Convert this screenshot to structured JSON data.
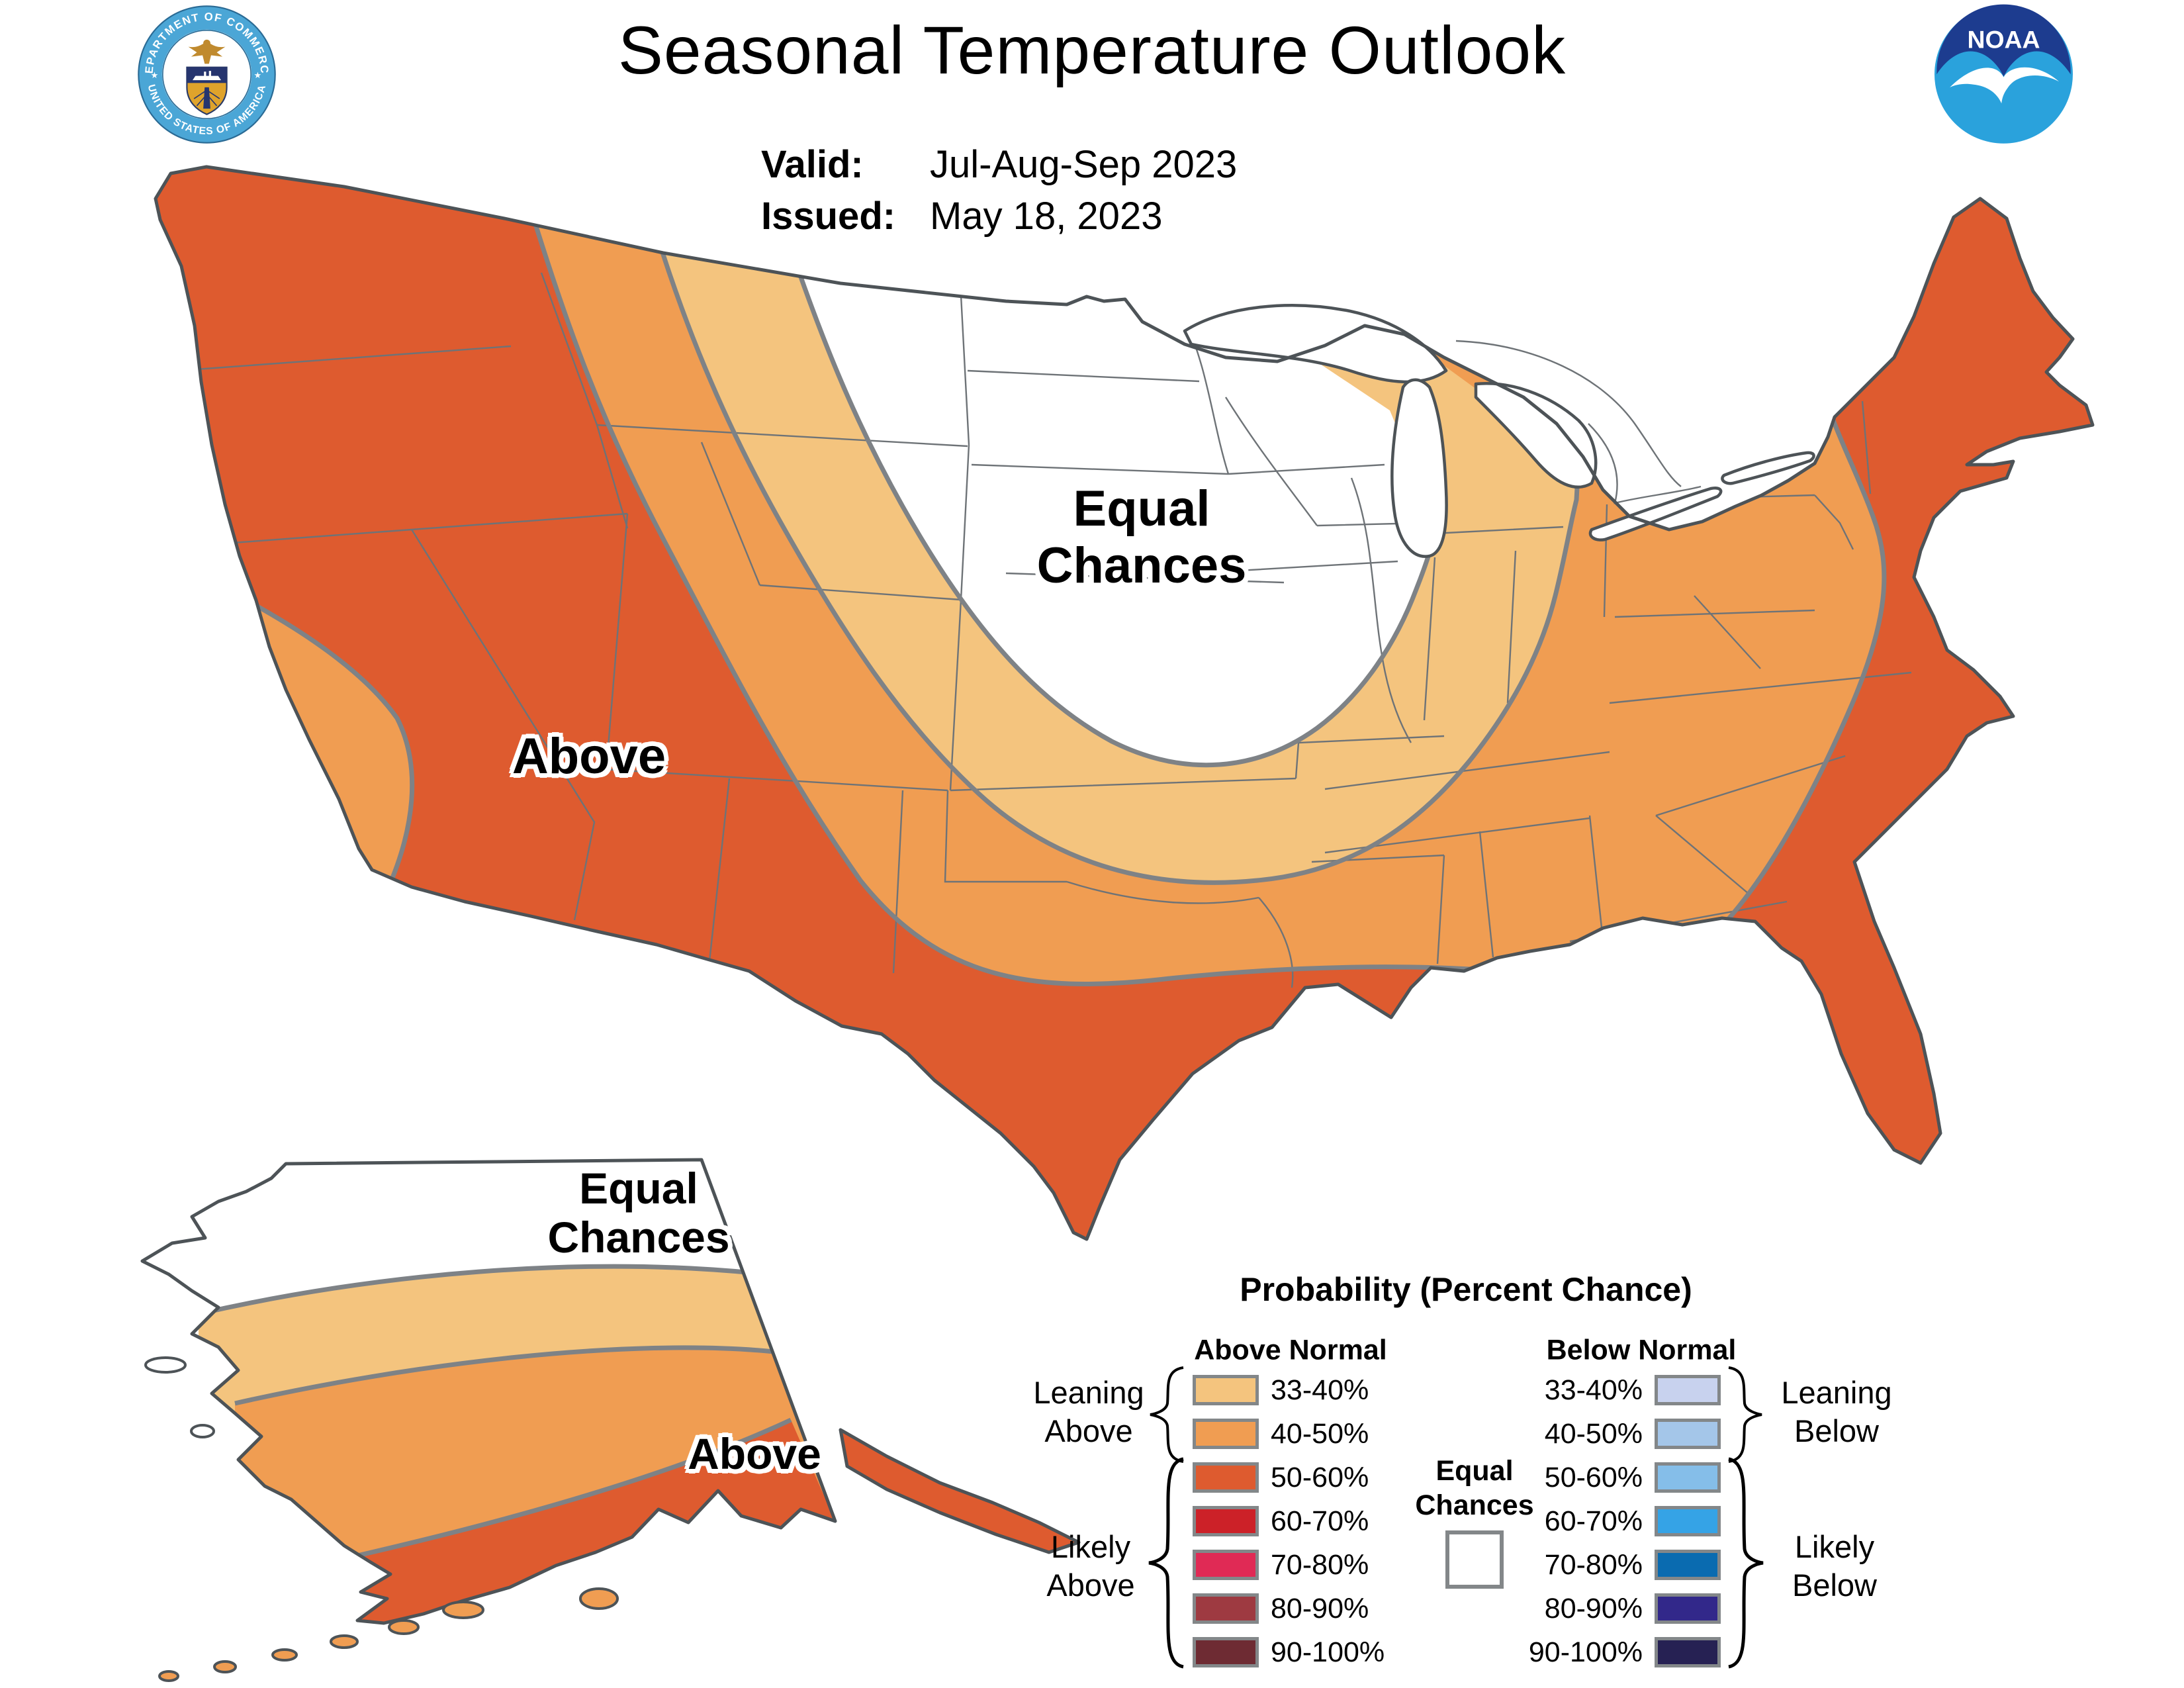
{
  "header": {
    "title": "Seasonal Temperature Outlook",
    "valid_label": "Valid:",
    "valid_value": "Jul-Aug-Sep 2023",
    "issued_label": "Issued:",
    "issued_value": "May 18, 2023"
  },
  "logos": {
    "noaa_text": "NOAA",
    "doc_ring_top": "DEPARTMENT OF COMMERCE",
    "doc_ring_bottom": "UNITED STATES OF AMERICA",
    "noaa_dark_blue": "#1D3C8F",
    "noaa_light_blue": "#2AA2DC",
    "doc_ring_blue": "#4BA6D6"
  },
  "map": {
    "labels": {
      "conus_above": "Above",
      "conus_equal_line1": "Equal",
      "conus_equal_line2": "Chances",
      "alaska_equal_line1": "Equal",
      "alaska_equal_line2": "Chances",
      "alaska_above": "Above"
    },
    "colors": {
      "equal_chances": "#FFFFFF",
      "above_33_40": "#F4C47E",
      "above_40_50": "#F09D52",
      "above_50_60": "#DE5B2F",
      "boundary_gray": "#7E8286",
      "coast_gray": "#4D5357",
      "state_line_gray": "#6E7377",
      "water_white": "#FFFFFF"
    }
  },
  "legend": {
    "title": "Probability (Percent Chance)",
    "above_header": "Above Normal",
    "below_header": "Below Normal",
    "equal_line1": "Equal",
    "equal_line2": "Chances",
    "groups": {
      "leaning_above_line1": "Leaning",
      "leaning_above_line2": "Above",
      "likely_above_line1": "Likely",
      "likely_above_line2": "Above",
      "leaning_below_line1": "Leaning",
      "leaning_below_line2": "Below",
      "likely_below_line1": "Likely",
      "likely_below_line2": "Below"
    },
    "above_rows": [
      {
        "label": "33-40%",
        "color": "#F4C47E"
      },
      {
        "label": "40-50%",
        "color": "#F09D52"
      },
      {
        "label": "50-60%",
        "color": "#DE5B2F"
      },
      {
        "label": "60-70%",
        "color": "#CC2128"
      },
      {
        "label": "70-80%",
        "color": "#E02A55"
      },
      {
        "label": "80-90%",
        "color": "#9E3A41"
      },
      {
        "label": "90-100%",
        "color": "#6E2B33"
      }
    ],
    "below_rows": [
      {
        "label": "33-40%",
        "color": "#C8D2EE"
      },
      {
        "label": "40-50%",
        "color": "#A4C6E9"
      },
      {
        "label": "50-60%",
        "color": "#85BEE9"
      },
      {
        "label": "60-70%",
        "color": "#35A3E6"
      },
      {
        "label": "70-80%",
        "color": "#0A6BB0"
      },
      {
        "label": "80-90%",
        "color": "#32288A"
      },
      {
        "label": "90-100%",
        "color": "#262153"
      }
    ]
  }
}
